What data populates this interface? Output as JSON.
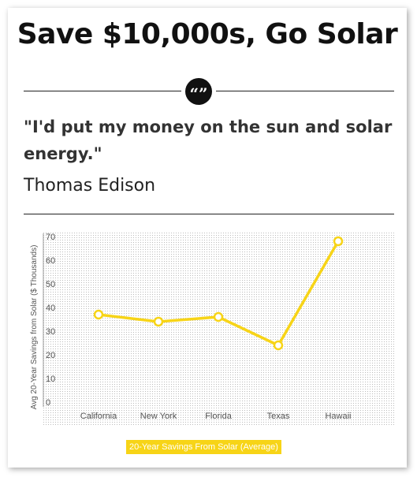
{
  "page": {
    "title": "Save $10,000s, Go Solar",
    "quote_icon": "quote-marks-icon",
    "quote_mark": "“”",
    "quote_text": "\"I'd put my money on the sun and solar energy.\"",
    "quote_author": "Thomas Edison"
  },
  "chart_data": {
    "type": "line",
    "categories": [
      "California",
      "New York",
      "Florida",
      "Texas",
      "Hawaii"
    ],
    "series": [
      {
        "name": "20-Year Savings From Solar (Average)",
        "values": [
          37,
          34,
          36,
          24,
          68
        ],
        "color": "#f7d417"
      }
    ],
    "xlabel": "",
    "ylabel": "Avg 20-Year Savings from Solar ($ Thousands)",
    "ylim": [
      0,
      70
    ],
    "yticks": [
      0,
      10,
      20,
      30,
      40,
      50,
      60,
      70
    ],
    "grid": true,
    "grid_style": "dotted",
    "legend": "bottom",
    "colors": {
      "line": "#f7d417",
      "marker_fill": "#ffffff",
      "axis_text": "#555555",
      "grid": "#bbbbbb"
    }
  }
}
